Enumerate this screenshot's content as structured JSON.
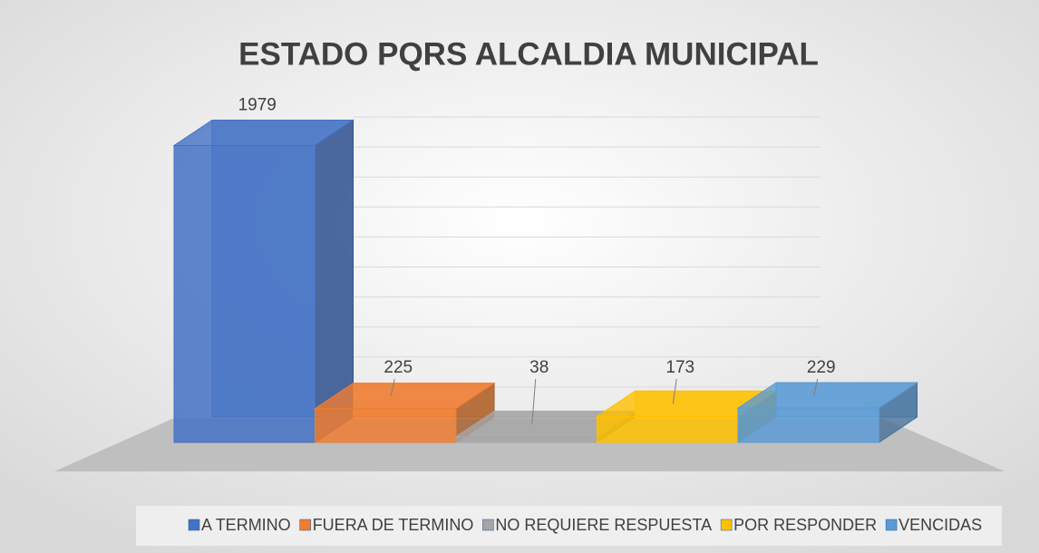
{
  "chart_data": {
    "type": "bar3d",
    "title": "ESTADO PQRS ALCALDIA MUNICIPAL",
    "categories": [
      "A TERMINO",
      "FUERA DE TERMINO",
      "NO REQUIERE RESPUESTA",
      "POR RESPONDER",
      "VENCIDAS"
    ],
    "values": [
      1979,
      225,
      38,
      173,
      229
    ],
    "colors": [
      "#4472c4",
      "#ed7d31",
      "#a5a5a5",
      "#ffc000",
      "#5b9bd5"
    ],
    "ylim": [
      0,
      2000
    ],
    "yticks": [
      0,
      200,
      400,
      600,
      800,
      1000,
      1200,
      1400,
      1600,
      1800,
      2000
    ],
    "grid": true,
    "legend": "bottom"
  }
}
